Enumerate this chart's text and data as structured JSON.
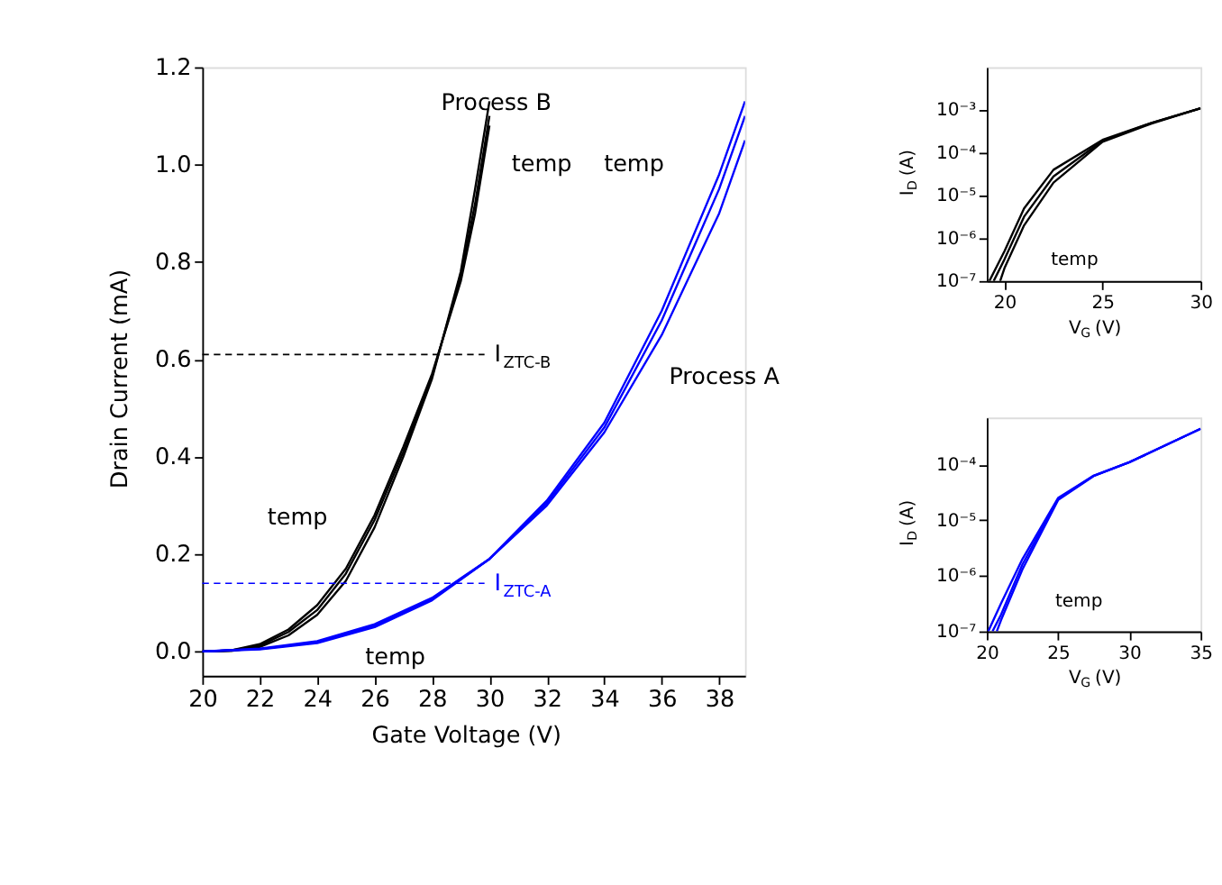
{
  "chart_data": [
    {
      "type": "line",
      "xlabel": "Gate Voltage (V)",
      "ylabel": "Drain Current (mA)",
      "xlim": [
        20,
        38.9
      ],
      "ylim": [
        -0.05,
        1.2
      ],
      "xticks": [
        20,
        22,
        24,
        26,
        28,
        30,
        32,
        34,
        36,
        38
      ],
      "yticks": [
        {
          "value": 0,
          "label": "0.0"
        },
        {
          "value": 0.2,
          "label": "0.2"
        },
        {
          "value": 0.4,
          "label": "0.4"
        },
        {
          "value": 0.6,
          "label": "0.6"
        },
        {
          "value": 0.8,
          "label": "0.8"
        },
        {
          "value": 1.0,
          "label": "1.0"
        },
        {
          "value": 1.2,
          "label": "1.2"
        }
      ],
      "grid": false,
      "series": [
        {
          "color": "#000000",
          "x": [
            20,
            21,
            22,
            23,
            24,
            25,
            26,
            27,
            28,
            29,
            29.5,
            30
          ],
          "values": [
            0,
            0.002,
            0.015,
            0.045,
            0.095,
            0.17,
            0.28,
            0.42,
            0.57,
            0.76,
            0.9,
            1.08
          ]
        },
        {
          "color": "#000000",
          "x": [
            20,
            21,
            22,
            23,
            24,
            25,
            26,
            27,
            28,
            29,
            29.5,
            30
          ],
          "values": [
            0,
            0.002,
            0.012,
            0.04,
            0.085,
            0.16,
            0.27,
            0.41,
            0.565,
            0.77,
            0.92,
            1.1
          ]
        },
        {
          "color": "#000000",
          "x": [
            20,
            21,
            22,
            23,
            24,
            25,
            26,
            27,
            28,
            29,
            29.5,
            30
          ],
          "values": [
            0,
            0.001,
            0.009,
            0.033,
            0.075,
            0.145,
            0.255,
            0.4,
            0.56,
            0.78,
            0.95,
            1.13
          ]
        },
        {
          "color": "#0000ff",
          "x": [
            20,
            22,
            24,
            26,
            28,
            30,
            32,
            34,
            36,
            38,
            38.9
          ],
          "values": [
            0,
            0.004,
            0.017,
            0.05,
            0.105,
            0.19,
            0.31,
            0.47,
            0.7,
            0.98,
            1.13
          ]
        },
        {
          "color": "#0000ff",
          "x": [
            20,
            22,
            24,
            26,
            28,
            30,
            32,
            34,
            36,
            38,
            38.9
          ],
          "values": [
            0,
            0.005,
            0.019,
            0.053,
            0.108,
            0.19,
            0.305,
            0.46,
            0.68,
            0.95,
            1.1
          ]
        },
        {
          "color": "#0000ff",
          "x": [
            20,
            22,
            24,
            26,
            28,
            30,
            32,
            34,
            36,
            38,
            38.9
          ],
          "values": [
            0,
            0.006,
            0.021,
            0.056,
            0.11,
            0.19,
            0.3,
            0.45,
            0.65,
            0.9,
            1.05
          ]
        }
      ],
      "ref_lines": [
        {
          "axis": "y",
          "value": 0.61,
          "label": "I$_{ZTC-B}$",
          "color": "#000000",
          "line_style": "dashed"
        },
        {
          "axis": "y",
          "value": 0.14,
          "label": "I$_{ZTC-A}$",
          "color": "#0000ff",
          "line_style": "dashed"
        }
      ],
      "annotations": [
        "Process B",
        "Process A",
        "temp",
        "temp",
        "temp",
        "temp"
      ]
    },
    {
      "type": "line",
      "xlabel": "V$_{G}$ (V)",
      "ylabel": "I$_{D}$ (A)",
      "log": "y",
      "xlim": [
        19.1,
        30
      ],
      "ylim": [
        1e-07,
        0.01
      ],
      "xticks": [
        20,
        25,
        30
      ],
      "yticks": [
        {
          "value": 1e-07,
          "label": "10⁻⁷"
        },
        {
          "value": 1e-06,
          "label": "10⁻⁶"
        },
        {
          "value": 1e-05,
          "label": "10⁻⁵"
        },
        {
          "value": 0.0001,
          "label": "10⁻⁴"
        },
        {
          "value": 0.001,
          "label": "10⁻³"
        }
      ],
      "grid": false,
      "series": [
        {
          "color": "#000000",
          "x": [
            19.23,
            20,
            21,
            22.5,
            25,
            27.5,
            30
          ],
          "values": [
            1e-07,
            5e-07,
            5e-06,
            4e-05,
            0.0002,
            0.0005,
            0.0011
          ]
        },
        {
          "color": "#000000",
          "x": [
            19.45,
            20,
            21,
            22.5,
            25,
            27.5,
            30
          ],
          "values": [
            1e-07,
            3.2e-07,
            3.2e-06,
            2.8e-05,
            0.00019,
            0.0005,
            0.0011
          ]
        },
        {
          "color": "#000000",
          "x": [
            19.78,
            20,
            21,
            22.5,
            25,
            27.5,
            30
          ],
          "values": [
            1e-07,
            2e-07,
            2e-06,
            2e-05,
            0.00018,
            0.00048,
            0.0011
          ]
        }
      ],
      "annotations": [
        "temp"
      ]
    },
    {
      "type": "line",
      "xlabel": "V$_{G}$ (V)",
      "ylabel": "I$_{D}$ (A)",
      "log": "y",
      "xlim": [
        20,
        35
      ],
      "ylim": [
        1e-07,
        0.0007
      ],
      "xticks": [
        20,
        25,
        30,
        35
      ],
      "yticks": [
        {
          "value": 1e-07,
          "label": "10⁻⁷"
        },
        {
          "value": 1e-06,
          "label": "10⁻⁶"
        },
        {
          "value": 1e-05,
          "label": "10⁻⁵"
        },
        {
          "value": 0.0001,
          "label": "10⁻⁴"
        }
      ],
      "grid": false,
      "series": [
        {
          "color": "#0000ff",
          "x": [
            20.1,
            21,
            22.5,
            25,
            27.5,
            30,
            35
          ],
          "values": [
            1e-07,
            3.2e-07,
            2e-06,
            2.5e-05,
            6.3e-05,
            0.00011,
            0.00044
          ]
        },
        {
          "color": "#0000ff",
          "x": [
            20.4,
            21,
            22.5,
            25,
            27.5,
            30,
            35
          ],
          "values": [
            1e-07,
            2e-07,
            1.6e-06,
            2.4e-05,
            6.3e-05,
            0.00011,
            0.00044
          ]
        },
        {
          "color": "#0000ff",
          "x": [
            20.7,
            21,
            22.5,
            25,
            27.5,
            30,
            35
          ],
          "values": [
            1e-07,
            1.6e-07,
            1.3e-06,
            2.3e-05,
            6.2e-05,
            0.00011,
            0.00044
          ]
        }
      ],
      "annotations": [
        "temp"
      ]
    }
  ]
}
